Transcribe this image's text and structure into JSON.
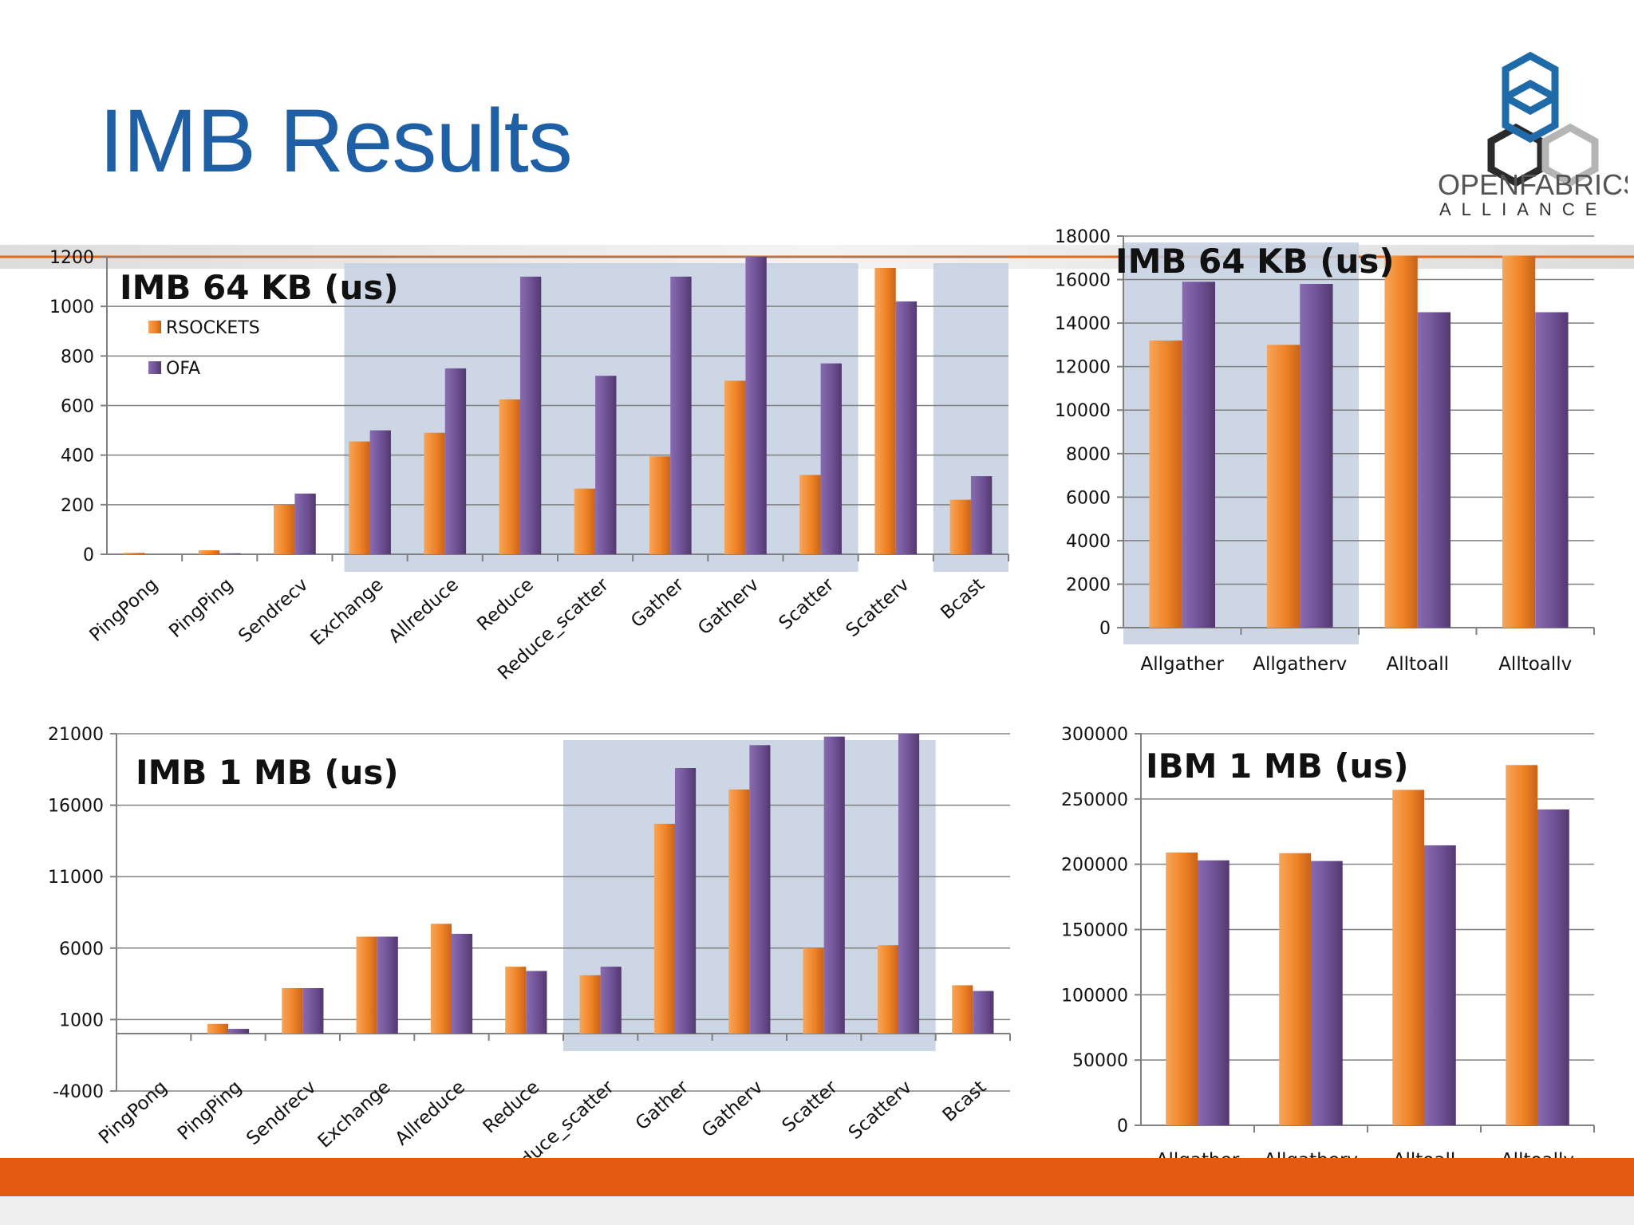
{
  "slide": {
    "title": "IMB Results",
    "logo_line1": "OPENFABRICS",
    "logo_line2": "ALLIANCE",
    "colors": {
      "title": "#1f5fa6",
      "band": "#e35a10",
      "rsockets": "#f08a2c",
      "ofa": "#74569a",
      "highlight": "#c3cfdf"
    }
  },
  "chart_data": [
    {
      "type": "bar",
      "title": "IMB 64 KB (us)",
      "categories": [
        "PingPong",
        "PingPing",
        "Sendrecv",
        "Exchange",
        "Allreduce",
        "Reduce",
        "Reduce_scatter",
        "Gather",
        "Gatherv",
        "Scatter",
        "Scatterv",
        "Bcast"
      ],
      "series": [
        {
          "name": "RSOCKETS",
          "values": [
            6,
            16,
            200,
            455,
            490,
            625,
            265,
            395,
            700,
            320,
            1155,
            220
          ]
        },
        {
          "name": "OFA",
          "values": [
            0,
            4,
            245,
            500,
            750,
            1120,
            720,
            1120,
            1200,
            770,
            1020,
            315
          ]
        }
      ],
      "ylim": [
        0,
        1200
      ],
      "yticks": [
        0,
        200,
        400,
        600,
        800,
        1000,
        1200
      ],
      "legend": "top-left",
      "grid": true,
      "highlighted_categories": [
        "Sendrecv",
        "Exchange",
        "Allreduce",
        "Reduce",
        "Reduce_scatter",
        "Gather",
        "Gatherv",
        "Scatter",
        "Bcast"
      ]
    },
    {
      "type": "bar",
      "title": "IMB 64 KB (us)",
      "categories": [
        "Allgather",
        "Allgatherv",
        "Alltoall",
        "Alltoallv"
      ],
      "series": [
        {
          "name": "RSOCKETS",
          "values": [
            13200,
            13000,
            17100,
            17100
          ]
        },
        {
          "name": "OFA",
          "values": [
            15900,
            15800,
            14500,
            14500
          ]
        }
      ],
      "ylim": [
        0,
        18000
      ],
      "yticks": [
        0,
        2000,
        4000,
        6000,
        8000,
        10000,
        12000,
        14000,
        16000,
        18000
      ],
      "grid": true,
      "highlighted_categories": [
        "Allgather",
        "Allgatherv"
      ]
    },
    {
      "type": "bar",
      "title": "IMB 1 MB (us)",
      "categories": [
        "PingPong",
        "PingPing",
        "Sendrecv",
        "Exchange",
        "Allreduce",
        "Reduce",
        "Reduce_scatter",
        "Gather",
        "Gatherv",
        "Scatter",
        "Scatterv",
        "Bcast"
      ],
      "series": [
        {
          "name": "RSOCKETS",
          "values": [
            0,
            700,
            3200,
            6800,
            7700,
            4700,
            4100,
            14700,
            17100,
            6000,
            6200,
            3400
          ]
        },
        {
          "name": "OFA",
          "values": [
            0,
            350,
            3200,
            6800,
            7000,
            4400,
            4700,
            18600,
            20200,
            20800,
            21000,
            3000
          ]
        }
      ],
      "ylim": [
        -4000,
        21000
      ],
      "yticks": [
        -4000,
        1000,
        6000,
        11000,
        16000,
        21000
      ],
      "grid": true,
      "highlighted_categories": [
        "Reduce_scatter",
        "Gather",
        "Gatherv",
        "Scatter",
        "Scatterv"
      ]
    },
    {
      "type": "bar",
      "title": "IBM 1 MB (us)",
      "categories": [
        "Allgather",
        "Allgatherv",
        "Alltoall",
        "Alltoallv"
      ],
      "series": [
        {
          "name": "RSOCKETS",
          "values": [
            209000,
            208500,
            257000,
            276000
          ]
        },
        {
          "name": "OFA",
          "values": [
            203000,
            202500,
            214500,
            242000
          ]
        }
      ],
      "ylim": [
        0,
        300000
      ],
      "yticks": [
        0,
        50000,
        100000,
        150000,
        200000,
        250000,
        300000
      ],
      "grid": true
    }
  ]
}
